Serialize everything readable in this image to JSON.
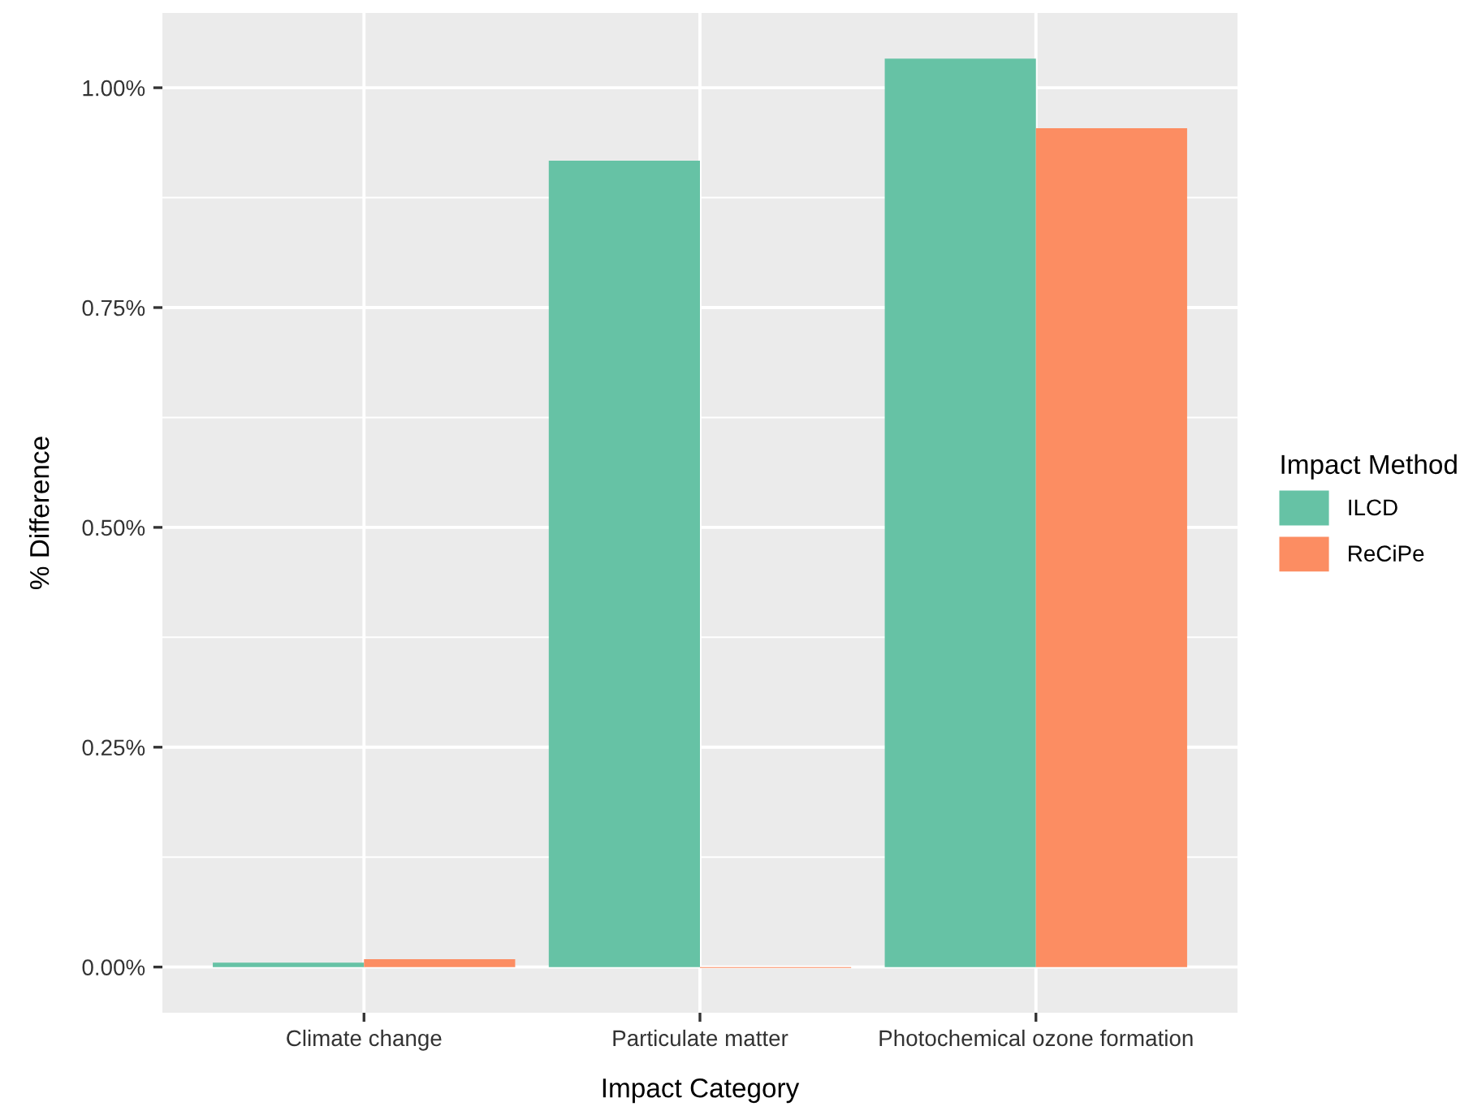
{
  "chart_data": {
    "type": "bar",
    "xlabel": "Impact Category",
    "ylabel": "% Difference",
    "legend_title": "Impact Method",
    "categories": [
      "Climate change",
      "Particulate matter",
      "Photochemical ozone formation"
    ],
    "series": [
      {
        "name": "ILCD",
        "color": "#66c2a5",
        "values": [
          0.005,
          0.917,
          1.033
        ]
      },
      {
        "name": "ReCiPe",
        "color": "#fc8d62",
        "values": [
          0.009,
          -0.001,
          0.954
        ]
      }
    ],
    "ylim": [
      -0.052,
      1.085
    ],
    "yticks": [
      {
        "value": 0,
        "label": "0.00%"
      },
      {
        "value": 0.25,
        "label": "0.25%"
      },
      {
        "value": 0.5,
        "label": "0.50%"
      },
      {
        "value": 0.75,
        "label": "0.75%"
      },
      {
        "value": 1,
        "label": "1.00%"
      }
    ],
    "grid": true,
    "legend": "right"
  }
}
